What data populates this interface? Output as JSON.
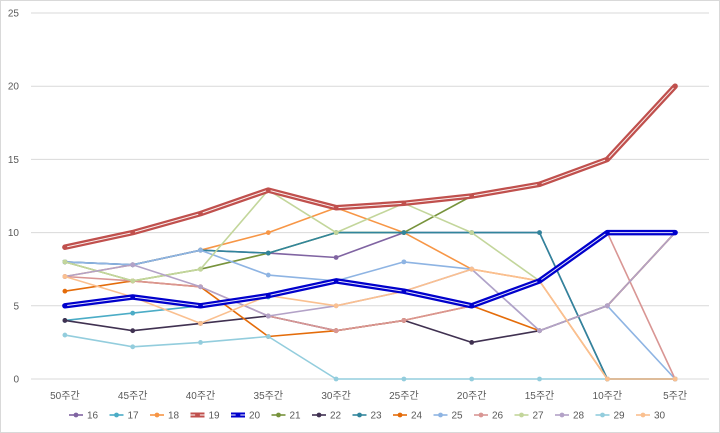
{
  "chart_data": {
    "type": "line",
    "title": "",
    "xlabel": "",
    "ylabel": "",
    "categories": [
      "50주간",
      "45주간",
      "40주간",
      "35주간",
      "30주간",
      "25주간",
      "20주간",
      "15주간",
      "10주간",
      "5주간"
    ],
    "ylim": [
      0,
      25
    ],
    "yticks": [
      0,
      5,
      10,
      15,
      20,
      25
    ],
    "grid": true,
    "legend_position": "bottom",
    "series": [
      {
        "name": "16",
        "color": "#8064a2",
        "highlight": false,
        "values": [
          8,
          7.8,
          8.8,
          8.6,
          8.3,
          10,
          10,
          10,
          0,
          0
        ]
      },
      {
        "name": "17",
        "color": "#4bacc6",
        "highlight": false,
        "values": [
          4,
          4.5,
          5,
          5.6,
          6.7,
          6,
          5,
          6.7,
          10,
          10
        ]
      },
      {
        "name": "18",
        "color": "#f79646",
        "highlight": false,
        "values": [
          7,
          7.8,
          8.8,
          10,
          11.7,
          10,
          7.5,
          6.7,
          0,
          0
        ]
      },
      {
        "name": "19",
        "color": "#c0504d",
        "highlight": true,
        "values": [
          9,
          10,
          11.3,
          12.9,
          11.7,
          12,
          12.5,
          13.3,
          15,
          20
        ]
      },
      {
        "name": "20",
        "color": "#0000cc",
        "highlight": true,
        "values": [
          5,
          5.6,
          5,
          5.7,
          6.7,
          6,
          5,
          6.7,
          10,
          10
        ]
      },
      {
        "name": "21",
        "color": "#77933c",
        "highlight": false,
        "values": [
          8,
          6.7,
          7.5,
          8.6,
          10,
          10,
          12.5,
          13.3,
          15,
          20
        ]
      },
      {
        "name": "22",
        "color": "#403151",
        "highlight": false,
        "values": [
          4,
          3.3,
          3.8,
          4.3,
          3.3,
          4,
          2.5,
          3.3,
          5,
          10
        ]
      },
      {
        "name": "23",
        "color": "#31859c",
        "highlight": false,
        "values": [
          8,
          7.8,
          8.8,
          8.6,
          10,
          10,
          10,
          10,
          0,
          0
        ]
      },
      {
        "name": "24",
        "color": "#e46c0a",
        "highlight": false,
        "values": [
          6,
          6.7,
          6.3,
          2.9,
          3.3,
          4,
          5,
          3.3,
          5,
          10
        ]
      },
      {
        "name": "25",
        "color": "#8eb4e3",
        "highlight": false,
        "values": [
          8,
          7.8,
          8.8,
          7.1,
          6.7,
          8,
          7.5,
          3.3,
          5,
          0
        ]
      },
      {
        "name": "26",
        "color": "#d99694",
        "highlight": false,
        "values": [
          7,
          6.7,
          6.3,
          4.3,
          3.3,
          4,
          5,
          6.7,
          10,
          0
        ]
      },
      {
        "name": "27",
        "color": "#c3d69b",
        "highlight": false,
        "values": [
          8,
          6.7,
          7.5,
          12.9,
          10,
          12,
          10,
          6.7,
          10,
          10
        ]
      },
      {
        "name": "28",
        "color": "#b3a2c7",
        "highlight": false,
        "values": [
          7,
          7.8,
          6.3,
          4.3,
          5,
          6,
          7.5,
          3.3,
          5,
          10
        ]
      },
      {
        "name": "29",
        "color": "#93cddd",
        "highlight": false,
        "values": [
          3,
          2.2,
          2.5,
          2.9,
          0,
          0,
          0,
          0,
          0,
          0
        ]
      },
      {
        "name": "30",
        "color": "#fac090",
        "highlight": false,
        "values": [
          7,
          5.6,
          3.8,
          5.7,
          5,
          6,
          7.5,
          6.7,
          0,
          0
        ]
      }
    ]
  }
}
